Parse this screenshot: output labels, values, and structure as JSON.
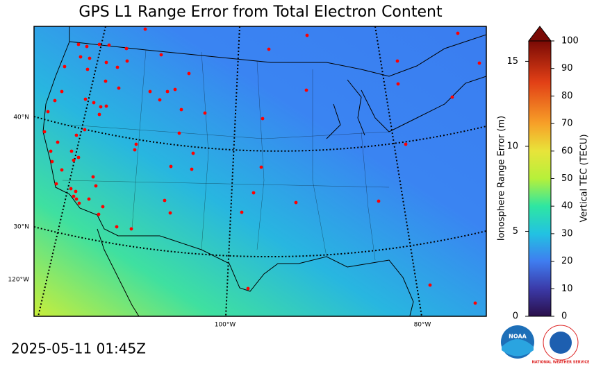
{
  "title": "GPS L1 Range Error from Total Electron Content",
  "timestamp": "2025-05-11 01:45Z",
  "map": {
    "lat_labels": [
      "40°N",
      "30°N"
    ],
    "lon_labels": [
      "120°W",
      "100°W",
      "80°W"
    ]
  },
  "colorbar": {
    "ylabel": "Ionosphere Range Error (m)",
    "y2label": "Vertical TEC (TECU)",
    "ylim": [
      0,
      16.2
    ],
    "yticks": [
      0,
      5,
      10,
      15
    ],
    "y2lim": [
      0,
      100
    ],
    "y2ticks": [
      0,
      10,
      20,
      30,
      40,
      50,
      60,
      70,
      80,
      90,
      100
    ]
  },
  "logos": {
    "noaa": "NOAA",
    "nws": "NATIONAL WEATHER SERVICE"
  }
}
